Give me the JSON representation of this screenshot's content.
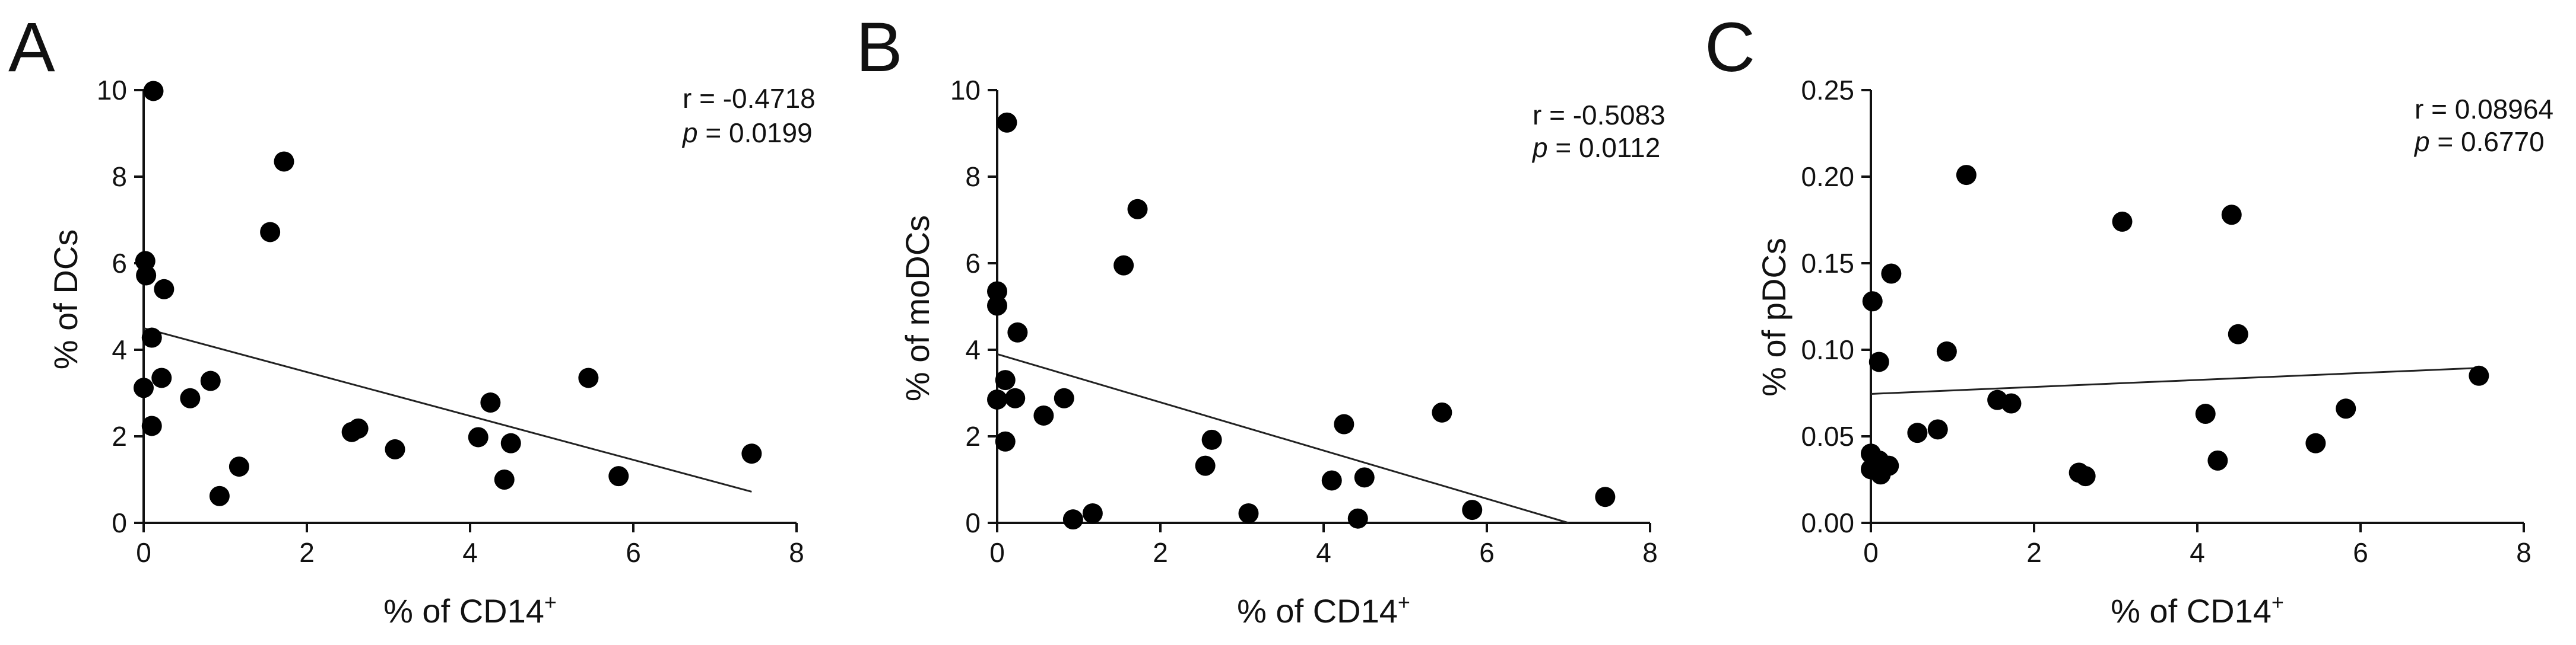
{
  "chart_data": [
    {
      "type": "scatter",
      "panel": "A",
      "xlabel": "% of CD14",
      "xlabel_sup": "+",
      "ylabel": "% of DCs",
      "xlim": [
        0,
        8
      ],
      "ylim": [
        0,
        10
      ],
      "xticks": [
        0,
        2,
        4,
        6,
        8
      ],
      "yticks": [
        0,
        2,
        4,
        6,
        8,
        10
      ],
      "ytick_labels": [
        "0",
        "2",
        "4",
        "6",
        "8",
        "10"
      ],
      "r_text": "r = -0.4718",
      "p_label": "p",
      "p_value": " = 0.0199",
      "fit_line": {
        "x": [
          0,
          7.45
        ],
        "y": [
          4.5,
          0.72
        ]
      },
      "points": [
        {
          "x": 0.12,
          "y": 9.98
        },
        {
          "x": 1.72,
          "y": 8.35
        },
        {
          "x": 1.55,
          "y": 6.72
        },
        {
          "x": 0.02,
          "y": 6.05
        },
        {
          "x": 0.03,
          "y": 5.72
        },
        {
          "x": 0.25,
          "y": 5.4
        },
        {
          "x": 0.1,
          "y": 4.28
        },
        {
          "x": 0.22,
          "y": 3.35
        },
        {
          "x": 0.0,
          "y": 3.12
        },
        {
          "x": 0.82,
          "y": 3.28
        },
        {
          "x": 0.57,
          "y": 2.88
        },
        {
          "x": 0.1,
          "y": 2.24
        },
        {
          "x": 2.55,
          "y": 2.1
        },
        {
          "x": 2.63,
          "y": 2.18
        },
        {
          "x": 3.08,
          "y": 1.7
        },
        {
          "x": 4.1,
          "y": 1.98
        },
        {
          "x": 4.25,
          "y": 2.78
        },
        {
          "x": 4.5,
          "y": 1.84
        },
        {
          "x": 4.42,
          "y": 1.0
        },
        {
          "x": 5.45,
          "y": 3.35
        },
        {
          "x": 5.82,
          "y": 1.08
        },
        {
          "x": 7.45,
          "y": 1.6
        },
        {
          "x": 1.17,
          "y": 1.3
        },
        {
          "x": 0.93,
          "y": 0.62
        }
      ]
    },
    {
      "type": "scatter",
      "panel": "B",
      "xlabel": "% of CD14",
      "xlabel_sup": "+",
      "ylabel": "% of moDCs",
      "xlim": [
        0,
        8
      ],
      "ylim": [
        0,
        10
      ],
      "xticks": [
        0,
        2,
        4,
        6,
        8
      ],
      "yticks": [
        0,
        2,
        4,
        6,
        8,
        10
      ],
      "ytick_labels": [
        "0",
        "2",
        "4",
        "6",
        "8",
        "10"
      ],
      "r_text": "r = -0.5083",
      "p_label": "p",
      "p_value": " = 0.0112",
      "fit_line": {
        "x": [
          0,
          7.0
        ],
        "y": [
          3.9,
          0.0
        ]
      },
      "points": [
        {
          "x": 0.12,
          "y": 9.25
        },
        {
          "x": 1.72,
          "y": 7.25
        },
        {
          "x": 1.55,
          "y": 5.95
        },
        {
          "x": 0.0,
          "y": 5.35
        },
        {
          "x": 0.0,
          "y": 5.02
        },
        {
          "x": 0.25,
          "y": 4.4
        },
        {
          "x": 0.1,
          "y": 3.3
        },
        {
          "x": 0.0,
          "y": 2.85
        },
        {
          "x": 0.22,
          "y": 2.88
        },
        {
          "x": 0.82,
          "y": 2.88
        },
        {
          "x": 0.57,
          "y": 2.48
        },
        {
          "x": 0.1,
          "y": 1.88
        },
        {
          "x": 2.63,
          "y": 1.92
        },
        {
          "x": 2.55,
          "y": 1.32
        },
        {
          "x": 3.08,
          "y": 0.22
        },
        {
          "x": 4.1,
          "y": 0.98
        },
        {
          "x": 4.25,
          "y": 2.28
        },
        {
          "x": 4.5,
          "y": 1.05
        },
        {
          "x": 4.42,
          "y": 0.1
        },
        {
          "x": 5.45,
          "y": 2.55
        },
        {
          "x": 5.82,
          "y": 0.3
        },
        {
          "x": 7.45,
          "y": 0.6
        },
        {
          "x": 1.17,
          "y": 0.22
        },
        {
          "x": 0.93,
          "y": 0.08
        }
      ]
    },
    {
      "type": "scatter",
      "panel": "C",
      "xlabel": "% of CD14",
      "xlabel_sup": "+",
      "ylabel": "% of pDCs",
      "xlim": [
        0,
        8
      ],
      "ylim": [
        0,
        0.25
      ],
      "xticks": [
        0,
        2,
        4,
        6,
        8
      ],
      "yticks": [
        0,
        0.05,
        0.1,
        0.15,
        0.2,
        0.25
      ],
      "ytick_labels": [
        "0.00",
        "0.05",
        "0.10",
        "0.15",
        "0.20",
        "0.25"
      ],
      "r_text": "r = 0.08964",
      "p_label": "p",
      "p_value": " = 0.6770",
      "fit_line": {
        "x": [
          0,
          7.45
        ],
        "y": [
          0.0745,
          0.0895
        ]
      },
      "points": [
        {
          "x": 1.17,
          "y": 0.201
        },
        {
          "x": 3.08,
          "y": 0.174
        },
        {
          "x": 4.42,
          "y": 0.178
        },
        {
          "x": 0.25,
          "y": 0.144
        },
        {
          "x": 0.02,
          "y": 0.128
        },
        {
          "x": 4.5,
          "y": 0.109
        },
        {
          "x": 0.93,
          "y": 0.099
        },
        {
          "x": 0.1,
          "y": 0.093
        },
        {
          "x": 7.45,
          "y": 0.085
        },
        {
          "x": 1.55,
          "y": 0.071
        },
        {
          "x": 1.72,
          "y": 0.069
        },
        {
          "x": 4.1,
          "y": 0.063
        },
        {
          "x": 5.82,
          "y": 0.066
        },
        {
          "x": 0.57,
          "y": 0.052
        },
        {
          "x": 0.82,
          "y": 0.054
        },
        {
          "x": 5.45,
          "y": 0.046
        },
        {
          "x": 0.0,
          "y": 0.04
        },
        {
          "x": 0.1,
          "y": 0.036
        },
        {
          "x": 0.22,
          "y": 0.033
        },
        {
          "x": 0.0,
          "y": 0.031
        },
        {
          "x": 0.12,
          "y": 0.028
        },
        {
          "x": 2.55,
          "y": 0.029
        },
        {
          "x": 2.63,
          "y": 0.027
        },
        {
          "x": 4.25,
          "y": 0.036
        }
      ]
    }
  ]
}
